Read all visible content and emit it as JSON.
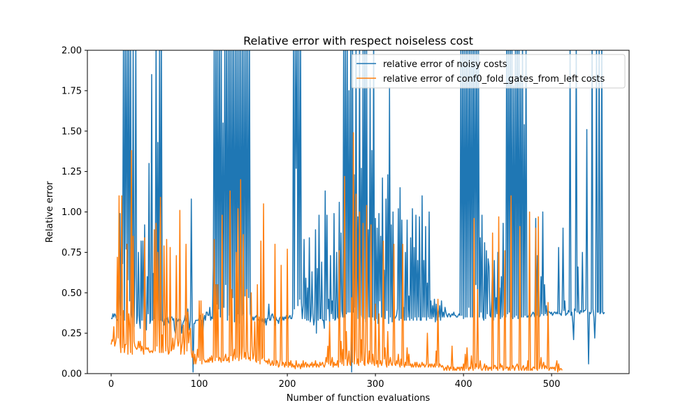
{
  "chart_data": {
    "type": "line",
    "title": "Relative error with respect noiseless cost",
    "xlabel": "Number of function evaluations",
    "ylabel": "Relative error",
    "xlim": [
      -27,
      588
    ],
    "ylim": [
      0,
      2
    ],
    "xticks": [
      0,
      100,
      200,
      300,
      400,
      500
    ],
    "yticks": [
      0.0,
      0.25,
      0.5,
      0.75,
      1.0,
      1.25,
      1.5,
      1.75,
      2.0
    ],
    "ytick_labels": [
      "0.00",
      "0.25",
      "0.50",
      "0.75",
      "1.00",
      "1.25",
      "1.50",
      "1.75",
      "2.00"
    ],
    "legend_position": "top-right",
    "grid": false,
    "series": [
      {
        "name": "relative error of noisy costs",
        "color": "#1f77b4",
        "x_start": 0,
        "values": [
          0.34,
          0.34,
          0.37,
          0.35,
          0.37,
          0.36,
          0.34,
          0.33,
          0.33,
          0.61,
          0.99,
          0.36,
          0.99,
          0.68,
          2.1,
          0.33,
          2.1,
          0.77,
          2.1,
          0.58,
          2.1,
          0.45,
          2.1,
          0.37,
          0.34,
          2.1,
          0.29,
          0.61,
          2.1,
          0.31,
          0.36,
          0.75,
          0.33,
          0.28,
          0.82,
          0.33,
          0.82,
          0.33,
          0.92,
          0.33,
          0.27,
          0.6,
          0.37,
          1.3,
          0.31,
          0.33,
          1.85,
          0.33,
          0.62,
          0.34,
          0.34,
          2.1,
          0.33,
          1.43,
          0.33,
          2.1,
          0.33,
          2.1,
          0.33,
          0.32,
          0.3,
          0.34,
          0.33,
          0.34,
          0.35,
          0.32,
          0.31,
          0.35,
          0.35,
          0.35,
          0.33,
          0.34,
          0.27,
          0.25,
          0.34,
          0.32,
          0.33,
          0.34,
          0.33,
          0.33,
          0.25,
          0.3,
          0.32,
          0.33,
          0.36,
          0.33,
          0.32,
          0.4,
          0.32,
          0.27,
          0.33,
          1.08,
          0.33,
          0.01,
          0.31,
          0.31,
          0.33,
          0.33,
          0.33,
          0.33,
          0.35,
          0.36,
          0.31,
          0.33,
          0.24,
          0.33,
          0.36,
          0.33,
          0.38,
          0.38,
          0.36,
          0.36,
          0.41,
          0.33,
          0.35,
          0.34,
          0.66,
          2.1,
          0.35,
          2.1,
          0.43,
          2.1,
          0.4,
          2.1,
          0.35,
          2.1,
          0.41,
          1.55,
          0.41,
          2.1,
          0.55,
          2.1,
          0.33,
          2.1,
          0.36,
          2.1,
          0.33,
          2.1,
          0.47,
          2.1,
          0.32,
          2.1,
          0.37,
          2.1,
          0.37,
          2.1,
          0.31,
          2.1,
          0.36,
          2.1,
          0.37,
          2.1,
          0.48,
          2.1,
          0.33,
          2.1,
          0.47,
          2.1,
          0.37,
          0.34,
          0.33,
          0.35,
          0.33,
          0.35,
          0.35,
          0.36,
          0.33,
          0.33,
          0.34,
          0.32,
          0.34,
          0.32,
          0.34,
          0.33,
          0.31,
          0.34,
          0.3,
          0.34,
          0.34,
          0.43,
          0.33,
          0.33,
          0.36,
          0.37,
          0.35,
          0.34,
          0.3,
          0.35,
          0.33,
          0.33,
          0.31,
          0.34,
          0.35,
          0.34,
          0.33,
          0.35,
          0.33,
          0.35,
          0.34,
          0.36,
          0.36,
          0.34,
          0.35,
          0.36,
          0.34,
          0.34,
          0.37,
          2.1,
          0.4,
          2.1,
          1.27,
          2.1,
          0.42,
          2.1,
          0.46,
          2.1,
          0.44,
          0.34,
          0.42,
          0.83,
          0.34,
          0.59,
          0.33,
          0.53,
          0.33,
          0.84,
          0.32,
          0.36,
          0.63,
          0.37,
          0.3,
          0.34,
          0.89,
          0.25,
          0.65,
          0.33,
          0.98,
          0.34,
          0.34,
          0.69,
          0.33,
          0.33,
          0.28,
          1.13,
          0.33,
          0.98,
          0.4,
          0.46,
          0.32,
          0.73,
          0.37,
          0.45,
          0.34,
          0.99,
          0.33,
          0.34,
          0.75,
          0.35,
          0.34,
          1.06,
          0.35,
          0.87,
          0.39,
          0.35,
          2.1,
          0.35,
          2.1,
          0.37,
          2.1,
          0.38,
          1.75,
          0.38,
          2.1,
          0.01,
          2.1,
          0.38,
          1.23,
          0.41,
          2.1,
          0.34,
          0.97,
          0.34,
          2.1,
          0.36,
          1.27,
          0.35,
          2.1,
          0.34,
          2.1,
          0.32,
          2.1,
          0.35,
          0.89,
          0.35,
          1.82,
          0.35,
          1.38,
          0.35,
          2.1,
          0.33,
          0.96,
          0.34,
          0.9,
          0.31,
          0.99,
          0.45,
          0.85,
          0.35,
          1.21,
          0.37,
          0.64,
          0.34,
          1.08,
          0.39,
          1.23,
          0.31,
          1.77,
          0.35,
          0.92,
          0.32,
          1.0,
          0.35,
          0.34,
          0.35,
          0.36,
          0.4,
          1.02,
          0.33,
          1.15,
          0.34,
          0.95,
          0.35,
          0.41,
          0.33,
          0.75,
          0.33,
          0.95,
          0.35,
          0.48,
          0.33,
          0.84,
          0.34,
          1.02,
          0.33,
          0.78,
          0.35,
          0.98,
          0.33,
          0.7,
          0.35,
          0.97,
          0.33,
          0.33,
          1.1,
          0.35,
          0.7,
          0.35,
          0.91,
          0.33,
          0.56,
          0.35,
          1.0,
          0.34,
          0.45,
          0.34,
          0.42,
          0.35,
          0.46,
          0.32,
          0.43,
          0.33,
          0.4,
          0.35,
          0.42,
          0.33,
          0.45,
          0.35,
          0.38,
          0.35,
          0.41,
          0.38,
          0.36,
          0.35,
          0.37,
          0.37,
          0.35,
          0.36,
          0.37,
          0.36,
          0.38,
          0.36,
          0.36,
          0.35,
          0.35,
          0.36,
          0.37,
          0.36,
          2.1,
          0.36,
          2.1,
          0.34,
          2.1,
          0.35,
          2.1,
          0.35,
          2.1,
          0.41,
          2.1,
          0.35,
          2.1,
          0.35,
          2.1,
          0.48,
          2.1,
          0.55,
          2.1,
          0.4,
          2.1,
          0.35,
          0.84,
          0.38,
          0.98,
          0.35,
          0.33,
          0.81,
          0.34,
          0.76,
          0.37,
          0.71,
          0.66,
          0.36,
          0.35,
          0.45,
          0.68,
          0.33,
          0.7,
          0.35,
          0.47,
          0.37,
          0.75,
          0.36,
          0.53,
          0.34,
          0.6,
          0.35,
          0.93,
          0.36,
          0.54,
          0.35,
          2.1,
          0.37,
          2.1,
          0.38,
          2.1,
          0.35,
          2.1,
          0.34,
          1.78,
          0.35,
          2.1,
          0.36,
          2.1,
          0.34,
          2.1,
          0.38,
          1.84,
          0.35,
          2.1,
          0.35,
          1.54,
          0.36,
          2.1,
          0.35,
          0.35,
          0.36,
          0.37,
          0.35,
          0.36,
          0.37,
          0.38,
          0.37,
          0.35,
          0.96,
          0.36,
          0.73,
          0.36,
          0.35,
          0.36,
          0.6,
          0.37,
          1.0,
          0.36,
          0.55,
          0.37,
          0.42,
          0.36,
          0.39,
          0.38,
          0.38,
          0.37,
          0.38,
          0.36,
          0.37,
          0.38,
          0.38,
          0.37,
          0.38,
          0.37,
          0.78,
          0.37,
          0.37,
          0.36,
          0.4,
          0.9,
          0.39,
          0.45,
          0.36,
          0.37,
          0.37,
          0.39,
          0.38,
          2.1,
          0.36,
          0.38,
          0.32,
          0.21,
          0.4,
          0.39,
          2.1,
          0.38,
          0.66,
          0.38,
          0.37,
          0.39,
          0.38,
          0.75,
          0.38,
          0.39,
          0.39,
          0.4,
          1.51,
          0.38,
          0.06,
          0.38,
          0.37,
          0.38,
          2.1,
          0.4,
          0.35,
          0.22,
          0.37,
          2.1,
          0.38,
          0.38,
          2.1,
          0.37,
          0.38,
          2.1,
          0.38,
          0.37,
          0.38
        ]
      },
      {
        "name": "relative error of conf0_fold_gates_from_left costs",
        "color": "#ff7f0e",
        "x_start": 0,
        "values": [
          0.18,
          0.21,
          0.2,
          0.29,
          0.17,
          0.19,
          0.23,
          0.72,
          0.22,
          1.1,
          0.2,
          0.13,
          1.1,
          0.16,
          0.39,
          0.13,
          0.18,
          0.18,
          0.8,
          0.12,
          0.37,
          0.3,
          0.13,
          1.38,
          0.12,
          0.85,
          0.2,
          0.17,
          0.16,
          0.15,
          0.16,
          0.2,
          0.16,
          0.2,
          0.14,
          0.17,
          0.15,
          0.12,
          0.84,
          0.15,
          0.16,
          0.15,
          0.16,
          0.14,
          0.13,
          0.14,
          0.14,
          0.13,
          0.15,
          0.89,
          0.14,
          0.93,
          0.17,
          0.75,
          0.33,
          0.13,
          1.09,
          0.13,
          0.24,
          0.13,
          0.79,
          0.36,
          0.14,
          0.83,
          0.17,
          0.12,
          0.13,
          0.78,
          0.14,
          0.15,
          0.22,
          0.15,
          0.18,
          0.24,
          0.73,
          0.22,
          0.17,
          0.2,
          1.01,
          0.12,
          0.16,
          0.2,
          0.3,
          0.12,
          0.23,
          0.8,
          0.14,
          0.38,
          0.19,
          0.25,
          0.28,
          0.13,
          0.1,
          0.14,
          0.06,
          0.12,
          0.06,
          0.09,
          0.15,
          0.1,
          0.45,
          0.08,
          0.45,
          0.06,
          0.37,
          0.09,
          0.08,
          0.07,
          0.08,
          0.07,
          0.09,
          0.07,
          0.1,
          0.08,
          0.11,
          0.07,
          0.11,
          0.83,
          0.08,
          0.55,
          0.1,
          0.55,
          0.08,
          0.1,
          0.09,
          0.07,
          0.98,
          0.08,
          0.08,
          0.1,
          0.12,
          0.08,
          0.08,
          0.1,
          0.07,
          1.13,
          0.11,
          0.52,
          0.08,
          0.11,
          0.15,
          0.09,
          0.75,
          0.1,
          1.02,
          0.08,
          0.13,
          1.2,
          0.09,
          0.17,
          0.86,
          0.1,
          0.13,
          0.09,
          0.52,
          0.14,
          0.09,
          0.1,
          0.08,
          0.5,
          0.17,
          0.09,
          0.12,
          0.32,
          0.08,
          0.07,
          0.55,
          0.08,
          0.35,
          0.06,
          0.82,
          0.09,
          0.1,
          1.05,
          0.08,
          0.08,
          0.07,
          0.08,
          0.06,
          0.09,
          0.07,
          0.05,
          0.06,
          0.08,
          0.05,
          0.06,
          0.8,
          0.05,
          0.08,
          0.07,
          0.04,
          0.05,
          0.09,
          0.67,
          0.05,
          0.07,
          0.06,
          0.04,
          0.07,
          0.05,
          0.77,
          0.04,
          0.07,
          0.05,
          0.08,
          0.04,
          0.06,
          0.04,
          0.05,
          0.03,
          0.08,
          0.05,
          0.04,
          0.06,
          0.05,
          0.03,
          0.06,
          0.04,
          0.08,
          0.04,
          0.06,
          0.07,
          0.04,
          0.06,
          0.05,
          0.04,
          0.06,
          0.05,
          0.07,
          0.04,
          0.06,
          0.05,
          0.08,
          0.04,
          0.06,
          0.05,
          0.04,
          0.07,
          0.05,
          0.06,
          0.07,
          0.05,
          0.04,
          0.06,
          0.1,
          0.07,
          0.17,
          0.06,
          0.32,
          0.05,
          0.07,
          0.1,
          0.04,
          0.07,
          0.05,
          0.06,
          0.05,
          0.08,
          0.04,
          0.76,
          0.07,
          0.2,
          0.06,
          0.15,
          0.05,
          1.22,
          0.09,
          0.26,
          0.05,
          0.08,
          0.14,
          0.06,
          0.05,
          0.47,
          0.07,
          1.49,
          0.06,
          0.15,
          1.11,
          0.06,
          0.09,
          0.05,
          1.0,
          0.07,
          0.21,
          0.08,
          0.93,
          0.06,
          0.05,
          0.19,
          1.04,
          0.07,
          0.06,
          0.14,
          0.07,
          0.92,
          0.06,
          0.12,
          0.07,
          0.05,
          0.43,
          0.06,
          0.08,
          0.04,
          0.37,
          0.06,
          0.08,
          0.05,
          0.07,
          0.82,
          0.09,
          0.16,
          0.06,
          0.04,
          0.26,
          0.05,
          0.07,
          0.1,
          0.06,
          0.05,
          0.08,
          0.8,
          0.06,
          0.05,
          0.08,
          0.06,
          0.12,
          0.06,
          0.04,
          0.09,
          0.05,
          0.8,
          0.06,
          0.04,
          0.07,
          0.05,
          0.16,
          0.05,
          0.12,
          0.05,
          0.06,
          0.04,
          0.06,
          0.04,
          0.05,
          0.07,
          0.04,
          0.07,
          0.05,
          0.04,
          0.06,
          0.04,
          0.05,
          0.07,
          0.05,
          0.06,
          0.04,
          0.05,
          0.06,
          0.25,
          0.04,
          0.05,
          0.06,
          0.04,
          0.06,
          0.05,
          0.04,
          0.06,
          0.04,
          0.14,
          0.05,
          0.46,
          0.04,
          0.06,
          0.05,
          0.04,
          0.05,
          0.04,
          0.02,
          0.03,
          0.04,
          0.02,
          0.05,
          0.04,
          0.02,
          0.04,
          0.03,
          0.17,
          0.02,
          0.04,
          0.02,
          0.03,
          0.02,
          0.04,
          0.03,
          0.04,
          0.02,
          0.04,
          0.04,
          0.02,
          0.06,
          0.02,
          0.12,
          0.03,
          0.16,
          0.04,
          0.02,
          0.04,
          0.03,
          0.11,
          0.04,
          0.02,
          0.96,
          0.03,
          0.06,
          0.04,
          0.52,
          0.03,
          0.04,
          0.08,
          0.03,
          0.02,
          0.03,
          0.04,
          0.06,
          0.02,
          0.05,
          0.04,
          0.02,
          0.04,
          0.03,
          0.04,
          0.02,
          0.87,
          0.03,
          0.05,
          0.05,
          0.03,
          0.04,
          0.02,
          0.97,
          0.03,
          0.06,
          0.04,
          0.05,
          0.02,
          0.03,
          0.76,
          0.03,
          0.04,
          0.04,
          0.02,
          0.04,
          0.02,
          1.1,
          0.03,
          0.05,
          0.04,
          0.02,
          0.04,
          0.05,
          0.06,
          0.04,
          0.02,
          0.91,
          0.03,
          0.02,
          0.04,
          0.05,
          0.02,
          0.03,
          0.04,
          0.02,
          0.08,
          0.02,
          1.0,
          0.02,
          0.03,
          0.02,
          0.04,
          0.04,
          0.03,
          0.9,
          0.03,
          0.02,
          0.97,
          0.03,
          0.05,
          0.1,
          0.03,
          0.05,
          0.07,
          0.03,
          0.05,
          0.04,
          0.03,
          0.44,
          0.02,
          0.03,
          0.04,
          0.03,
          0.04,
          0.03,
          0.04,
          0.02,
          0.05,
          0.08,
          0.01,
          0.06,
          0.02,
          0.03,
          0.03,
          0.02
        ]
      }
    ]
  }
}
